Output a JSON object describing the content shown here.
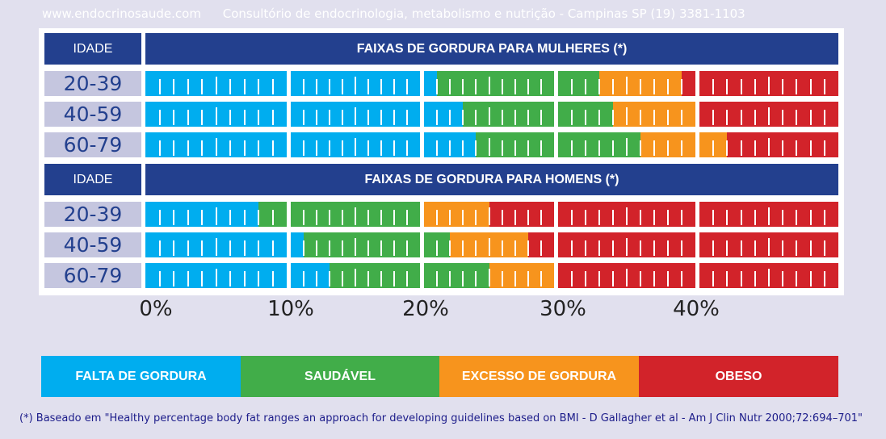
{
  "header": {
    "site": "www.endocrinosaude.com",
    "clinic": "Consultório de endocrinologia, metabolismo e nutrição - Campinas SP  (19) 3381-1103"
  },
  "colors": {
    "underfat": "#00adef",
    "healthy": "#41ad49",
    "overfat": "#f7941d",
    "obese": "#d2232a",
    "header": "#23408e",
    "age_cell": "#c5c6df"
  },
  "chart_data": {
    "type": "bar",
    "orientation": "horizontal-stacked-ranges",
    "xlim": [
      0,
      50
    ],
    "x_tick_labels": [
      "0%",
      "10%",
      "20%",
      "30%",
      "40%"
    ],
    "groups": [
      {
        "age_header": "IDADE",
        "title": "FAIXAS DE GORDURA PARA MULHERES (*)",
        "rows": [
          {
            "age": "20-39",
            "thresholds": [
              21,
              33,
              39
            ]
          },
          {
            "age": "40-59",
            "thresholds": [
              23,
              34,
              40
            ]
          },
          {
            "age": "60-79",
            "thresholds": [
              24,
              36,
              42
            ]
          }
        ]
      },
      {
        "age_header": "IDADE",
        "title": "FAIXAS DE GORDURA PARA HOMENS (*)",
        "rows": [
          {
            "age": "20-39",
            "thresholds": [
              8,
              20,
              25
            ]
          },
          {
            "age": "40-59",
            "thresholds": [
              11,
              22,
              28
            ]
          },
          {
            "age": "60-79",
            "thresholds": [
              13,
              25,
              30
            ]
          }
        ]
      }
    ],
    "legend": [
      "FALTA DE GORDURA",
      "SAUDÁVEL",
      "EXCESSO DE GORDURA",
      "OBESO"
    ]
  },
  "footnote": "(*) Baseado em \"Healthy percentage body fat ranges an approach for developing guidelines based on BMI - D Gallagher et al - Am J Clin Nutr 2000;72:694–701\""
}
